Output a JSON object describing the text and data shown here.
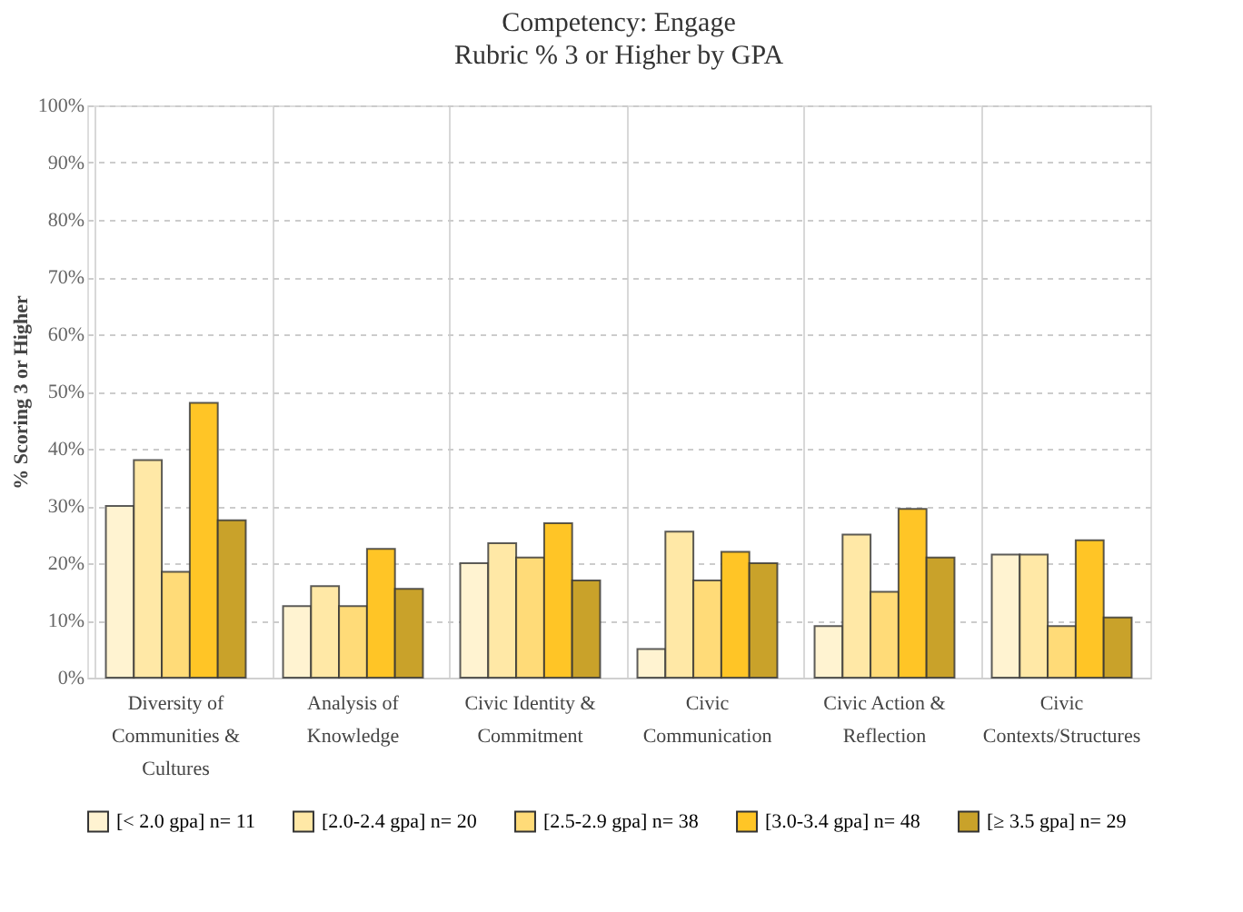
{
  "chart_data": {
    "type": "bar",
    "title": "Competency: Engage",
    "subtitle": "Rubric % 3 or Higher by GPA",
    "ylabel": "% Scoring 3 or Higher",
    "categories": [
      "Diversity of Communities & Cultures",
      "Analysis of Knowledge",
      "Civic Identity & Commitment",
      "Civic Communication",
      "Civic Action & Reflection",
      "Civic Contexts/Structures"
    ],
    "series": [
      {
        "name": "[< 2.0 gpa] n= 11",
        "color": "#fff3d1",
        "values": [
          30,
          12.5,
          20,
          5,
          9,
          21.5
        ]
      },
      {
        "name": "[2.0-2.4 gpa] n= 20",
        "color": "#ffe8a6",
        "values": [
          38,
          16,
          23.5,
          25.5,
          25,
          21.5
        ]
      },
      {
        "name": "[2.5-2.9 gpa] n= 38",
        "color": "#ffdb78",
        "values": [
          18.5,
          12.5,
          21,
          17,
          15,
          9
        ]
      },
      {
        "name": "[3.0-3.4 gpa] n= 48",
        "color": "#ffc526",
        "values": [
          48,
          22.5,
          27,
          22,
          29.5,
          24
        ]
      },
      {
        "name": "[≥ 3.5 gpa] n= 29",
        "color": "#c9a22a",
        "values": [
          27.5,
          15.5,
          17,
          20,
          21,
          10.5
        ]
      }
    ],
    "ylim": [
      0,
      100
    ],
    "yticks": [
      {
        "value": 0,
        "label": "0%"
      },
      {
        "value": 10,
        "label": "10%"
      },
      {
        "value": 20,
        "label": "20%"
      },
      {
        "value": 30,
        "label": "30%"
      },
      {
        "value": 40,
        "label": "40%"
      },
      {
        "value": 50,
        "label": "50%"
      },
      {
        "value": 60,
        "label": "60%"
      },
      {
        "value": 70,
        "label": "70%"
      },
      {
        "value": 80,
        "label": "80%"
      },
      {
        "value": 90,
        "label": "90%"
      },
      {
        "value": 100,
        "label": "100%"
      }
    ],
    "grid": true,
    "legend": "bottom"
  }
}
